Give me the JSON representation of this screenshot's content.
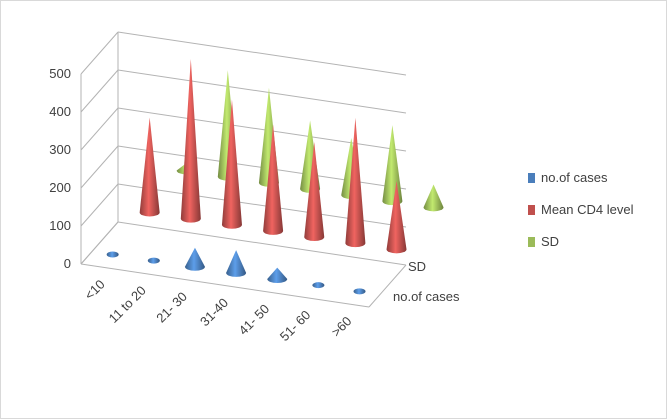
{
  "chart_data": {
    "type": "bar",
    "style": "3d-cone",
    "categories": [
      "<10",
      "11 to 20",
      "21- 30",
      "31-40",
      "41- 50",
      "51- 60",
      ">60"
    ],
    "series": [
      {
        "name": "no.of cases",
        "color": "#4a7ebb",
        "values": [
          3,
          8,
          50,
          60,
          30,
          12,
          12
        ]
      },
      {
        "name": "Mean CD4 level",
        "color": "#c0504d",
        "values": [
          250,
          420,
          330,
          280,
          250,
          330,
          180
        ]
      },
      {
        "name": "SD",
        "color": "#9bbb59",
        "values": [
          20,
          280,
          250,
          180,
          150,
          200,
          60
        ]
      }
    ],
    "depth_labels": [
      "no.of cases",
      "SD"
    ],
    "y_ticks": [
      "0",
      "100",
      "200",
      "300",
      "400",
      "500"
    ],
    "ylim": [
      0,
      500
    ],
    "grid": true,
    "legend": "right"
  }
}
